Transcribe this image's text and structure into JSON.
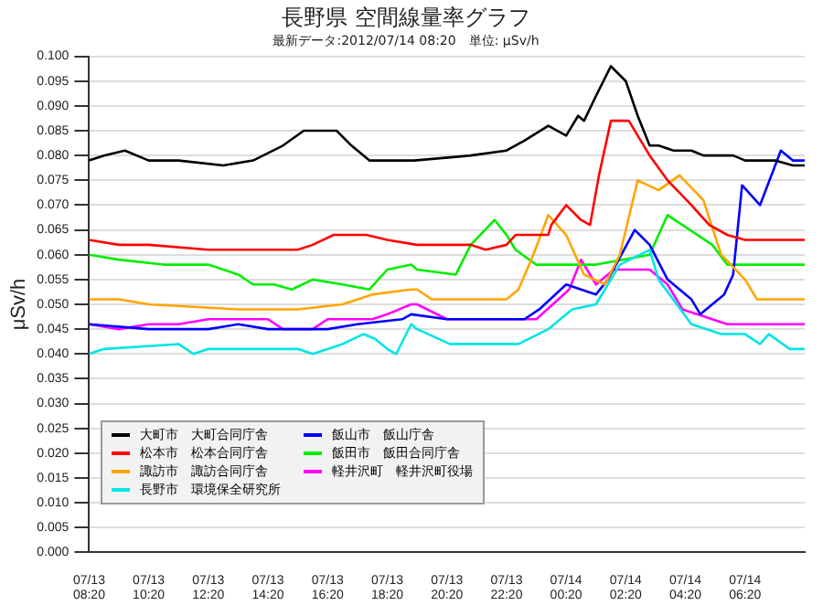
{
  "chart_data": {
    "type": "line",
    "title": "長野県 空間線量率グラフ",
    "subtitle": "最新データ:2012/07/14 08:20　単位: μSv/h",
    "ylabel": "μSv/h",
    "xlim": [
      "2012-07-13T08:20",
      "2012-07-14T08:20"
    ],
    "xticks": [
      {
        "value": "2012-07-13T08:20",
        "label": "07/13 08:20"
      },
      {
        "value": "2012-07-13T10:20",
        "label": "07/13 10:20"
      },
      {
        "value": "2012-07-13T12:20",
        "label": "07/13 12:20"
      },
      {
        "value": "2012-07-13T14:20",
        "label": "07/13 14:20"
      },
      {
        "value": "2012-07-13T16:20",
        "label": "07/13 16:20"
      },
      {
        "value": "2012-07-13T18:20",
        "label": "07/13 18:20"
      },
      {
        "value": "2012-07-13T20:20",
        "label": "07/13 20:20"
      },
      {
        "value": "2012-07-13T22:20",
        "label": "07/13 22:20"
      },
      {
        "value": "2012-07-14T00:20",
        "label": "07/14 00:20"
      },
      {
        "value": "2012-07-14T02:20",
        "label": "07/14 02:20"
      },
      {
        "value": "2012-07-14T04:20",
        "label": "07/14 04:20"
      },
      {
        "value": "2012-07-14T06:20",
        "label": "07/14 06:20"
      }
    ],
    "ylim": [
      0,
      0.1
    ],
    "yticks": [
      {
        "value": 0,
        "label": "0.000"
      },
      {
        "value": 0.005,
        "label": "0.005"
      },
      {
        "value": 0.01,
        "label": "0.010"
      },
      {
        "value": 0.015,
        "label": "0.015"
      },
      {
        "value": 0.02,
        "label": "0.020"
      },
      {
        "value": 0.025,
        "label": "0.025"
      },
      {
        "value": 0.03,
        "label": "0.030"
      },
      {
        "value": 0.035,
        "label": "0.035"
      },
      {
        "value": 0.04,
        "label": "0.040"
      },
      {
        "value": 0.045,
        "label": "0.045"
      },
      {
        "value": 0.05,
        "label": "0.050"
      },
      {
        "value": 0.055,
        "label": "0.055"
      },
      {
        "value": 0.06,
        "label": "0.060"
      },
      {
        "value": 0.065,
        "label": "0.065"
      },
      {
        "value": 0.07,
        "label": "0.070"
      },
      {
        "value": 0.075,
        "label": "0.075"
      },
      {
        "value": 0.08,
        "label": "0.080"
      },
      {
        "value": 0.085,
        "label": "0.085"
      },
      {
        "value": 0.09,
        "label": "0.090"
      },
      {
        "value": 0.095,
        "label": "0.095"
      },
      {
        "value": 0.1,
        "label": "0.100"
      }
    ],
    "grid": "y",
    "legend": "bottom left",
    "marker": "none",
    "line_style": "solid",
    "series": [
      {
        "name": "大町市　大町合同庁舎",
        "color": "#000000",
        "x": [
          "2012-07-13T08:20",
          "2012-07-13T08:50",
          "2012-07-13T09:32",
          "2012-07-13T10:20",
          "2012-07-13T11:20",
          "2012-07-13T12:50",
          "2012-07-13T13:50",
          "2012-07-13T14:50",
          "2012-07-13T15:32",
          "2012-07-13T16:38",
          "2012-07-13T17:08",
          "2012-07-13T17:44",
          "2012-07-13T19:14",
          "2012-07-13T21:08",
          "2012-07-13T22:20",
          "2012-07-13T22:56",
          "2012-07-13T23:44",
          "2012-07-14T00:20",
          "2012-07-14T00:44",
          "2012-07-14T00:56",
          "2012-07-14T01:20",
          "2012-07-14T01:50",
          "2012-07-14T02:20",
          "2012-07-14T02:44",
          "2012-07-14T03:08",
          "2012-07-14T03:26",
          "2012-07-14T03:56",
          "2012-07-14T04:32",
          "2012-07-14T04:56",
          "2012-07-14T05:56",
          "2012-07-14T06:20",
          "2012-07-14T07:20",
          "2012-07-14T07:56",
          "2012-07-14T08:20"
        ],
        "values": [
          0.079,
          0.08,
          0.081,
          0.079,
          0.079,
          0.078,
          0.079,
          0.082,
          0.085,
          0.085,
          0.082,
          0.079,
          0.079,
          0.08,
          0.081,
          0.083,
          0.086,
          0.084,
          0.088,
          0.087,
          0.092,
          0.098,
          0.095,
          0.088,
          0.082,
          0.082,
          0.081,
          0.081,
          0.08,
          0.08,
          0.079,
          0.079,
          0.078,
          0.078
        ]
      },
      {
        "name": "松本市　松本合同庁舎",
        "color": "#ff0000",
        "x": [
          "2012-07-13T08:20",
          "2012-07-13T09:20",
          "2012-07-13T10:20",
          "2012-07-13T12:20",
          "2012-07-13T15:20",
          "2012-07-13T15:50",
          "2012-07-13T16:32",
          "2012-07-13T17:38",
          "2012-07-13T18:20",
          "2012-07-13T19:20",
          "2012-07-13T21:08",
          "2012-07-13T21:38",
          "2012-07-13T22:20",
          "2012-07-13T22:38",
          "2012-07-13T23:44",
          "2012-07-13T23:50",
          "2012-07-14T00:20",
          "2012-07-14T00:50",
          "2012-07-14T01:08",
          "2012-07-14T01:26",
          "2012-07-14T01:50",
          "2012-07-14T02:26",
          "2012-07-14T03:08",
          "2012-07-14T03:44",
          "2012-07-14T04:32",
          "2012-07-14T05:08",
          "2012-07-14T05:44",
          "2012-07-14T06:20",
          "2012-07-14T08:20"
        ],
        "values": [
          0.063,
          0.062,
          0.062,
          0.061,
          0.061,
          0.062,
          0.064,
          0.064,
          0.063,
          0.062,
          0.062,
          0.061,
          0.062,
          0.064,
          0.064,
          0.066,
          0.07,
          0.067,
          0.066,
          0.076,
          0.087,
          0.087,
          0.08,
          0.075,
          0.07,
          0.066,
          0.064,
          0.063,
          0.063
        ]
      },
      {
        "name": "諏訪市　諏訪合同庁舎",
        "color": "#ffa500",
        "x": [
          "2012-07-13T08:20",
          "2012-07-13T09:20",
          "2012-07-13T10:20",
          "2012-07-13T13:20",
          "2012-07-13T15:20",
          "2012-07-13T16:50",
          "2012-07-13T17:50",
          "2012-07-13T19:08",
          "2012-07-13T19:20",
          "2012-07-13T19:50",
          "2012-07-13T22:20",
          "2012-07-13T22:44",
          "2012-07-13T23:14",
          "2012-07-13T23:44",
          "2012-07-14T00:20",
          "2012-07-14T00:56",
          "2012-07-14T01:38",
          "2012-07-14T02:08",
          "2012-07-14T02:44",
          "2012-07-14T03:26",
          "2012-07-14T04:08",
          "2012-07-14T04:56",
          "2012-07-14T05:32",
          "2012-07-14T06:20",
          "2012-07-14T06:44",
          "2012-07-14T08:20"
        ],
        "values": [
          0.051,
          0.051,
          0.05,
          0.049,
          0.049,
          0.05,
          0.052,
          0.053,
          0.053,
          0.051,
          0.051,
          0.053,
          0.06,
          0.068,
          0.064,
          0.056,
          0.054,
          0.06,
          0.075,
          0.073,
          0.076,
          0.071,
          0.06,
          0.055,
          0.051,
          0.051
        ]
      },
      {
        "name": "長野市　環境保全研究所",
        "color": "#00e5e5",
        "x": [
          "2012-07-13T08:20",
          "2012-07-13T08:50",
          "2012-07-13T11:20",
          "2012-07-13T11:50",
          "2012-07-13T12:20",
          "2012-07-13T15:20",
          "2012-07-13T15:50",
          "2012-07-13T16:50",
          "2012-07-13T17:32",
          "2012-07-13T17:56",
          "2012-07-13T18:20",
          "2012-07-13T18:38",
          "2012-07-13T19:08",
          "2012-07-13T19:20",
          "2012-07-13T20:26",
          "2012-07-13T22:44",
          "2012-07-13T23:44",
          "2012-07-14T00:32",
          "2012-07-14T01:20",
          "2012-07-14T02:08",
          "2012-07-14T03:08",
          "2012-07-14T03:26",
          "2012-07-14T04:32",
          "2012-07-14T05:32",
          "2012-07-14T06:20",
          "2012-07-14T06:50",
          "2012-07-14T07:08",
          "2012-07-14T07:50",
          "2012-07-14T08:20"
        ],
        "values": [
          0.04,
          0.041,
          0.042,
          0.04,
          0.041,
          0.041,
          0.04,
          0.042,
          0.044,
          0.043,
          0.041,
          0.04,
          0.046,
          0.045,
          0.042,
          0.042,
          0.045,
          0.049,
          0.05,
          0.058,
          0.061,
          0.055,
          0.046,
          0.044,
          0.044,
          0.042,
          0.044,
          0.041,
          0.041
        ]
      },
      {
        "name": "飯山市　飯山庁舎",
        "color": "#0000ff",
        "x": [
          "2012-07-13T08:20",
          "2012-07-13T10:20",
          "2012-07-13T12:20",
          "2012-07-13T13:20",
          "2012-07-13T14:20",
          "2012-07-13T16:20",
          "2012-07-13T17:20",
          "2012-07-13T18:50",
          "2012-07-13T19:08",
          "2012-07-13T20:20",
          "2012-07-13T21:20",
          "2012-07-13T22:56",
          "2012-07-13T23:26",
          "2012-07-14T00:20",
          "2012-07-14T01:20",
          "2012-07-14T01:44",
          "2012-07-14T02:38",
          "2012-07-14T03:08",
          "2012-07-14T03:44",
          "2012-07-14T04:32",
          "2012-07-14T04:50",
          "2012-07-14T05:38",
          "2012-07-14T05:56",
          "2012-07-14T06:14",
          "2012-07-14T06:50",
          "2012-07-14T07:32",
          "2012-07-14T07:56",
          "2012-07-14T08:20"
        ],
        "values": [
          0.046,
          0.045,
          0.045,
          0.046,
          0.045,
          0.045,
          0.046,
          0.047,
          0.048,
          0.047,
          0.047,
          0.047,
          0.049,
          0.054,
          0.052,
          0.055,
          0.065,
          0.062,
          0.055,
          0.051,
          0.048,
          0.052,
          0.056,
          0.074,
          0.07,
          0.081,
          0.079,
          0.079
        ]
      },
      {
        "name": "飯田市　飯田合同庁舎",
        "color": "#00ee00",
        "x": [
          "2012-07-13T08:20",
          "2012-07-13T09:20",
          "2012-07-13T10:50",
          "2012-07-13T12:20",
          "2012-07-13T13:20",
          "2012-07-13T13:50",
          "2012-07-13T14:32",
          "2012-07-13T15:08",
          "2012-07-13T15:50",
          "2012-07-13T16:50",
          "2012-07-13T17:44",
          "2012-07-13T18:20",
          "2012-07-13T19:08",
          "2012-07-13T19:20",
          "2012-07-13T20:38",
          "2012-07-13T21:08",
          "2012-07-13T21:56",
          "2012-07-13T22:20",
          "2012-07-13T22:38",
          "2012-07-13T23:20",
          "2012-07-14T01:20",
          "2012-07-14T03:08",
          "2012-07-14T03:44",
          "2012-07-14T05:14",
          "2012-07-14T05:44",
          "2012-07-14T08:20"
        ],
        "values": [
          0.06,
          0.059,
          0.058,
          0.058,
          0.056,
          0.054,
          0.054,
          0.053,
          0.055,
          0.054,
          0.053,
          0.057,
          0.058,
          0.057,
          0.056,
          0.062,
          0.067,
          0.064,
          0.061,
          0.058,
          0.058,
          0.06,
          0.068,
          0.062,
          0.058,
          0.058
        ]
      },
      {
        "name": "軽井沢町　軽井沢町役場",
        "color": "#ff00ff",
        "x": [
          "2012-07-13T08:20",
          "2012-07-13T09:20",
          "2012-07-13T10:20",
          "2012-07-13T11:20",
          "2012-07-13T12:20",
          "2012-07-13T14:20",
          "2012-07-13T14:50",
          "2012-07-13T15:50",
          "2012-07-13T16:20",
          "2012-07-13T17:50",
          "2012-07-13T18:20",
          "2012-07-13T19:08",
          "2012-07-13T19:20",
          "2012-07-13T20:20",
          "2012-07-13T21:20",
          "2012-07-13T23:20",
          "2012-07-14T00:26",
          "2012-07-14T00:50",
          "2012-07-14T01:20",
          "2012-07-14T01:56",
          "2012-07-14T03:08",
          "2012-07-14T03:44",
          "2012-07-14T04:14",
          "2012-07-14T05:44",
          "2012-07-14T08:20"
        ],
        "values": [
          0.046,
          0.045,
          0.046,
          0.046,
          0.047,
          0.047,
          0.045,
          0.045,
          0.047,
          0.047,
          0.048,
          0.05,
          0.05,
          0.047,
          0.047,
          0.047,
          0.053,
          0.059,
          0.054,
          0.057,
          0.057,
          0.054,
          0.049,
          0.046,
          0.046
        ]
      }
    ]
  }
}
